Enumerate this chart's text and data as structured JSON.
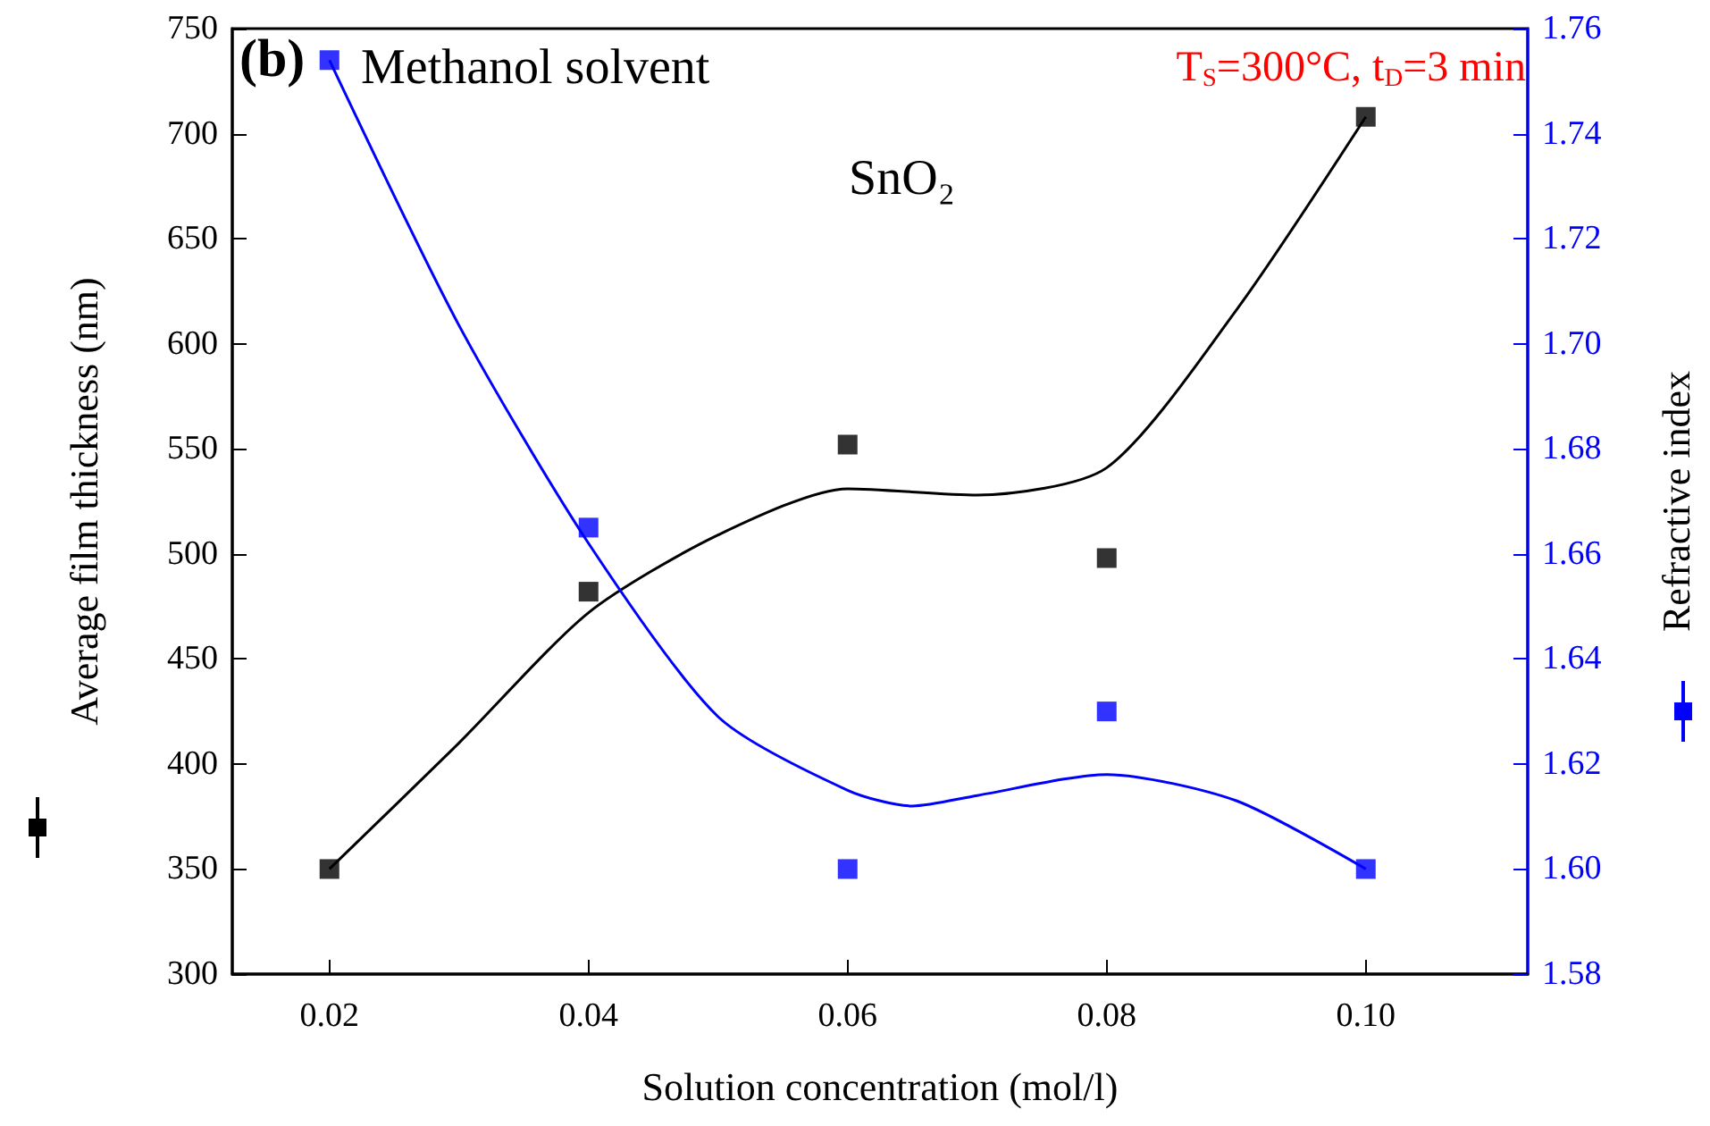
{
  "chart_data": {
    "type": "scatter",
    "xlabel": "Solution concentration (mol/l)",
    "ylabel": "Average film thickness (nm)",
    "y2label": "Refractive index",
    "annotations": [
      "(b)",
      "Methanol solvent",
      "SnO₂",
      "T$_{S}$=300°C, t$_{D}$=3 min"
    ],
    "x": [
      0.02,
      0.04,
      0.06,
      0.08,
      0.1
    ],
    "xlim": [
      0.0125,
      0.1125
    ],
    "xticks": [
      0.02,
      0.04,
      0.06,
      0.08,
      {
        "value": 0.1,
        "label": "0.10"
      }
    ],
    "ylim": [
      300,
      750
    ],
    "yticks": [
      300,
      350,
      400,
      450,
      500,
      550,
      600,
      650,
      700,
      750
    ],
    "y2lim": [
      1.58,
      1.76
    ],
    "y2ticks": [
      1.58,
      {
        "value": 1.6,
        "label": "1.60"
      },
      1.62,
      1.64,
      1.66,
      1.68,
      {
        "value": 1.7,
        "label": "1.70"
      },
      1.72,
      1.74,
      1.76
    ],
    "marker": "square",
    "grid": false,
    "series": [
      {
        "color": "#000000",
        "values": [
          350,
          482,
          552,
          498,
          708
        ]
      },
      {
        "color": "#0000ff",
        "axis": "y2",
        "values": [
          1.754,
          1.665,
          1.6,
          1.63,
          1.6
        ]
      },
      {
        "type": "line",
        "color": "#000000",
        "marker": "none",
        "x": [
          0.02,
          0.03,
          0.04,
          0.05,
          0.06,
          0.07,
          0.08,
          0.09,
          0.1
        ],
        "values": [
          350,
          410,
          472,
          509,
          531,
          528,
          541,
          616,
          708
        ]
      },
      {
        "type": "line",
        "color": "#0000ff",
        "marker": "none",
        "axis": "y2",
        "x": [
          0.02,
          0.03,
          0.04,
          0.05,
          0.06,
          0.065,
          0.07,
          0.08,
          0.09,
          0.1
        ],
        "values": [
          1.754,
          1.7035,
          1.662,
          1.629,
          1.615,
          1.612,
          1.614,
          1.618,
          1.613,
          1.6
        ]
      }
    ]
  }
}
